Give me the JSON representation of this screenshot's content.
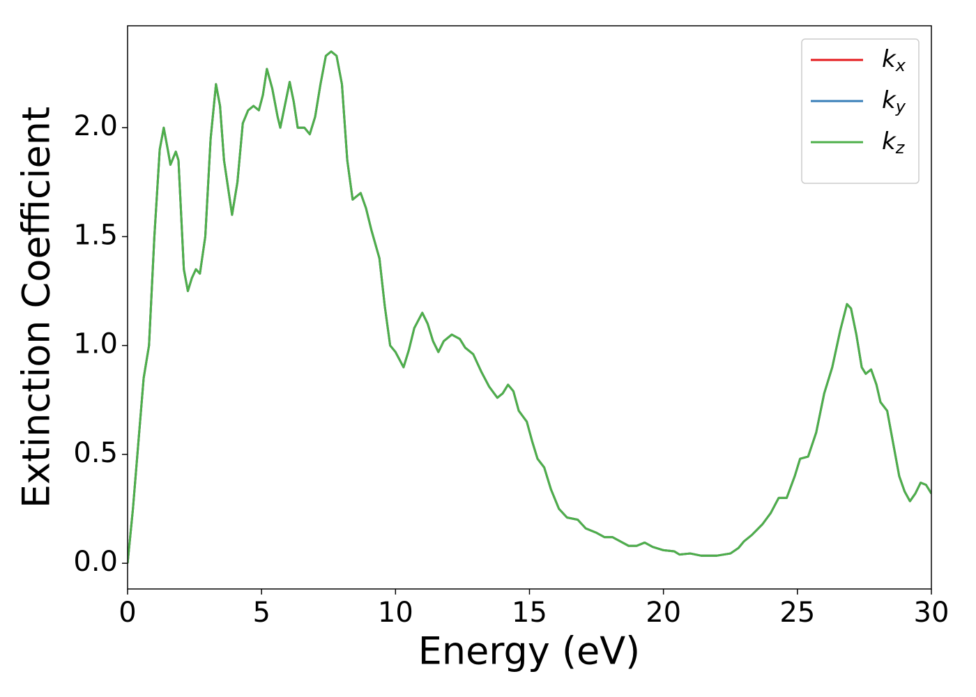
{
  "chart_data": {
    "type": "line",
    "xlabel": "Energy (eV)",
    "ylabel": "Extinction Coefficient",
    "x": [
      0,
      0.2,
      0.4,
      0.6,
      0.8,
      1.0,
      1.2,
      1.35,
      1.5,
      1.6,
      1.8,
      1.9,
      2.0,
      2.1,
      2.25,
      2.4,
      2.55,
      2.7,
      2.9,
      3.1,
      3.3,
      3.45,
      3.6,
      3.9,
      4.1,
      4.3,
      4.5,
      4.7,
      4.9,
      5.05,
      5.2,
      5.4,
      5.6,
      5.7,
      5.9,
      6.05,
      6.2,
      6.35,
      6.6,
      6.8,
      7.0,
      7.2,
      7.4,
      7.6,
      7.8,
      8.0,
      8.2,
      8.4,
      8.7,
      8.9,
      9.1,
      9.4,
      9.6,
      9.8,
      10.0,
      10.3,
      10.5,
      10.7,
      11.0,
      11.2,
      11.4,
      11.6,
      11.8,
      12.1,
      12.4,
      12.6,
      12.9,
      13.2,
      13.5,
      13.8,
      14.0,
      14.2,
      14.4,
      14.6,
      14.9,
      15.1,
      15.3,
      15.55,
      15.8,
      16.1,
      16.4,
      16.8,
      17.1,
      17.5,
      17.8,
      18.1,
      18.4,
      18.7,
      19.0,
      19.3,
      19.6,
      20.0,
      20.4,
      20.6,
      21.0,
      21.4,
      22.0,
      22.5,
      22.8,
      23.0,
      23.3,
      23.7,
      24.0,
      24.3,
      24.6,
      24.9,
      25.1,
      25.4,
      25.7,
      26.0,
      26.3,
      26.6,
      26.85,
      27.0,
      27.2,
      27.4,
      27.55,
      27.75,
      27.95,
      28.1,
      28.35,
      28.5,
      28.8,
      29.0,
      29.2,
      29.4,
      29.6,
      29.8,
      30.0
    ],
    "series": [
      {
        "name": "kx",
        "color": "#e41a1c",
        "values": [
          0,
          0.25,
          0.55,
          0.85,
          1.0,
          1.5,
          1.9,
          2.0,
          1.9,
          1.83,
          1.89,
          1.85,
          1.6,
          1.35,
          1.25,
          1.31,
          1.35,
          1.33,
          1.5,
          1.95,
          2.2,
          2.1,
          1.85,
          1.6,
          1.75,
          2.02,
          2.08,
          2.1,
          2.08,
          2.15,
          2.27,
          2.18,
          2.05,
          2.0,
          2.12,
          2.21,
          2.12,
          2.0,
          2.0,
          1.97,
          2.05,
          2.2,
          2.33,
          2.35,
          2.33,
          2.2,
          1.85,
          1.67,
          1.7,
          1.63,
          1.53,
          1.4,
          1.18,
          1.0,
          0.97,
          0.9,
          0.98,
          1.08,
          1.15,
          1.1,
          1.02,
          0.97,
          1.02,
          1.05,
          1.03,
          0.99,
          0.96,
          0.88,
          0.81,
          0.76,
          0.78,
          0.82,
          0.79,
          0.7,
          0.65,
          0.56,
          0.48,
          0.44,
          0.34,
          0.25,
          0.21,
          0.2,
          0.16,
          0.14,
          0.12,
          0.12,
          0.1,
          0.08,
          0.08,
          0.095,
          0.075,
          0.06,
          0.055,
          0.04,
          0.045,
          0.035,
          0.035,
          0.045,
          0.07,
          0.1,
          0.13,
          0.18,
          0.23,
          0.3,
          0.3,
          0.4,
          0.48,
          0.49,
          0.6,
          0.78,
          0.9,
          1.07,
          1.19,
          1.17,
          1.05,
          0.9,
          0.87,
          0.89,
          0.82,
          0.74,
          0.7,
          0.6,
          0.4,
          0.33,
          0.285,
          0.32,
          0.37,
          0.36,
          0.32
        ]
      },
      {
        "name": "ky",
        "color": "#377eb8",
        "values": [
          0,
          0.25,
          0.55,
          0.85,
          1.0,
          1.5,
          1.9,
          2.0,
          1.9,
          1.83,
          1.89,
          1.85,
          1.6,
          1.35,
          1.25,
          1.31,
          1.35,
          1.33,
          1.5,
          1.95,
          2.2,
          2.1,
          1.85,
          1.6,
          1.75,
          2.02,
          2.08,
          2.1,
          2.08,
          2.15,
          2.27,
          2.18,
          2.05,
          2.0,
          2.12,
          2.21,
          2.12,
          2.0,
          2.0,
          1.97,
          2.05,
          2.2,
          2.33,
          2.35,
          2.33,
          2.2,
          1.85,
          1.67,
          1.7,
          1.63,
          1.53,
          1.4,
          1.18,
          1.0,
          0.97,
          0.9,
          0.98,
          1.08,
          1.15,
          1.1,
          1.02,
          0.97,
          1.02,
          1.05,
          1.03,
          0.99,
          0.96,
          0.88,
          0.81,
          0.76,
          0.78,
          0.82,
          0.79,
          0.7,
          0.65,
          0.56,
          0.48,
          0.44,
          0.34,
          0.25,
          0.21,
          0.2,
          0.16,
          0.14,
          0.12,
          0.12,
          0.1,
          0.08,
          0.08,
          0.095,
          0.075,
          0.06,
          0.055,
          0.04,
          0.045,
          0.035,
          0.035,
          0.045,
          0.07,
          0.1,
          0.13,
          0.18,
          0.23,
          0.3,
          0.3,
          0.4,
          0.48,
          0.49,
          0.6,
          0.78,
          0.9,
          1.07,
          1.19,
          1.17,
          1.05,
          0.9,
          0.87,
          0.89,
          0.82,
          0.74,
          0.7,
          0.6,
          0.4,
          0.33,
          0.285,
          0.32,
          0.37,
          0.36,
          0.32
        ]
      },
      {
        "name": "kz",
        "color": "#4daf4a",
        "values": [
          0,
          0.25,
          0.55,
          0.85,
          1.0,
          1.5,
          1.9,
          2.0,
          1.9,
          1.83,
          1.89,
          1.85,
          1.6,
          1.35,
          1.25,
          1.31,
          1.35,
          1.33,
          1.5,
          1.95,
          2.2,
          2.1,
          1.85,
          1.6,
          1.75,
          2.02,
          2.08,
          2.1,
          2.08,
          2.15,
          2.27,
          2.18,
          2.05,
          2.0,
          2.12,
          2.21,
          2.12,
          2.0,
          2.0,
          1.97,
          2.05,
          2.2,
          2.33,
          2.35,
          2.33,
          2.2,
          1.85,
          1.67,
          1.7,
          1.63,
          1.53,
          1.4,
          1.18,
          1.0,
          0.97,
          0.9,
          0.98,
          1.08,
          1.15,
          1.1,
          1.02,
          0.97,
          1.02,
          1.05,
          1.03,
          0.99,
          0.96,
          0.88,
          0.81,
          0.76,
          0.78,
          0.82,
          0.79,
          0.7,
          0.65,
          0.56,
          0.48,
          0.44,
          0.34,
          0.25,
          0.21,
          0.2,
          0.16,
          0.14,
          0.12,
          0.12,
          0.1,
          0.08,
          0.08,
          0.095,
          0.075,
          0.06,
          0.055,
          0.04,
          0.045,
          0.035,
          0.035,
          0.045,
          0.07,
          0.1,
          0.13,
          0.18,
          0.23,
          0.3,
          0.3,
          0.4,
          0.48,
          0.49,
          0.6,
          0.78,
          0.9,
          1.07,
          1.19,
          1.17,
          1.05,
          0.9,
          0.87,
          0.89,
          0.82,
          0.74,
          0.7,
          0.6,
          0.4,
          0.33,
          0.285,
          0.32,
          0.37,
          0.36,
          0.32
        ]
      }
    ],
    "xlim": [
      0,
      30
    ],
    "xticks": [
      0,
      5,
      10,
      15,
      20,
      25,
      30
    ],
    "ylim": [
      -0.118,
      2.468
    ],
    "yticks": [
      {
        "value": 0,
        "label": "0.0"
      },
      {
        "value": 0.5,
        "label": "0.5"
      },
      {
        "value": 1,
        "label": "1.0"
      },
      {
        "value": 1.5,
        "label": "1.5"
      },
      {
        "value": 2,
        "label": "2.0"
      }
    ],
    "grid": false,
    "legend": "upper right"
  }
}
